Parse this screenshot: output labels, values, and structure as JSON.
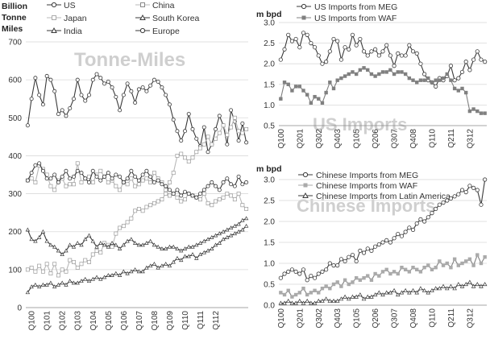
{
  "left_panel": {
    "unit_label": [
      "Billion",
      "Tonne",
      "Miles"
    ],
    "watermark": "Tonne-Miles",
    "legend": [
      "US",
      "China",
      "Japan",
      "South Korea",
      "India",
      "Europe"
    ]
  },
  "us_panel": {
    "unit_label": "m bpd",
    "watermark": "US Imports",
    "legend": [
      "US Imports from MEG",
      "US Imports from WAF"
    ]
  },
  "china_panel": {
    "unit_label": "m bpd",
    "watermark": "Chinese Imports",
    "legend": [
      "Chinese Imports from MEG",
      "Chinese Imports from WAF",
      "Chinese Imports from Latin America"
    ]
  },
  "colors": {
    "dark": "#3a3a3a",
    "light": "#b8b8b8",
    "grid": "#d9d9d9",
    "marker_fill_dark": "#808080"
  },
  "chart_data": [
    {
      "id": "tonne_miles",
      "type": "line",
      "title": "Tonne-Miles",
      "ylabel": "Billion Tonne Miles",
      "ylim": [
        0,
        700
      ],
      "yticks": [
        0,
        100,
        200,
        300,
        400,
        500,
        600,
        700
      ],
      "xlabels": [
        "Q100",
        "Q101",
        "Q102",
        "Q103",
        "Q104",
        "Q105",
        "Q106",
        "Q107",
        "Q108",
        "Q109",
        "Q110",
        "Q111",
        "Q112"
      ],
      "points_per_year": 4,
      "series": [
        {
          "name": "US",
          "marker": "circle",
          "tone": "dark",
          "values": [
            480,
            550,
            605,
            560,
            535,
            610,
            600,
            570,
            510,
            520,
            505,
            525,
            550,
            600,
            560,
            545,
            560,
            600,
            615,
            605,
            590,
            595,
            580,
            555,
            520,
            560,
            590,
            570,
            540,
            575,
            580,
            570,
            585,
            600,
            595,
            580,
            560,
            535,
            495,
            465,
            440,
            465,
            510,
            470,
            445,
            425,
            475,
            410,
            430,
            470,
            505,
            480,
            430,
            520,
            490,
            440,
            485,
            435
          ]
        },
        {
          "name": "China",
          "marker": "square",
          "tone": "light",
          "values": [
            100,
            105,
            95,
            110,
            95,
            115,
            90,
            115,
            85,
            100,
            95,
            125,
            120,
            105,
            115,
            125,
            120,
            140,
            150,
            145,
            170,
            165,
            160,
            195,
            210,
            215,
            225,
            235,
            255,
            260,
            255,
            265,
            270,
            275,
            280,
            285,
            300,
            330,
            355,
            400,
            405,
            395,
            385,
            395,
            410,
            420,
            430,
            450,
            430,
            445,
            460,
            480,
            455,
            475,
            500,
            465,
            460,
            470
          ]
        },
        {
          "name": "Japan",
          "marker": "square",
          "tone": "light",
          "values": [
            335,
            340,
            330,
            375,
            365,
            350,
            320,
            310,
            335,
            340,
            320,
            325,
            325,
            380,
            330,
            340,
            345,
            330,
            350,
            360,
            345,
            330,
            335,
            320,
            310,
            330,
            325,
            340,
            320,
            325,
            335,
            340,
            330,
            355,
            340,
            330,
            310,
            295,
            300,
            290,
            280,
            285,
            300,
            295,
            290,
            285,
            300,
            275,
            270,
            280,
            285,
            290,
            300,
            295,
            285,
            300,
            270,
            260
          ]
        },
        {
          "name": "South Korea",
          "marker": "triangle",
          "tone": "dark",
          "values": [
            40,
            55,
            60,
            55,
            60,
            60,
            65,
            55,
            60,
            65,
            60,
            70,
            65,
            65,
            70,
            75,
            70,
            75,
            80,
            75,
            80,
            85,
            85,
            90,
            85,
            95,
            90,
            95,
            100,
            95,
            95,
            105,
            110,
            115,
            105,
            110,
            115,
            110,
            120,
            130,
            125,
            135,
            135,
            140,
            130,
            140,
            145,
            150,
            155,
            165,
            170,
            180,
            185,
            190,
            195,
            200,
            205,
            215
          ]
        },
        {
          "name": "India",
          "marker": "triangle",
          "tone": "dark",
          "values": [
            205,
            180,
            175,
            185,
            200,
            175,
            165,
            160,
            150,
            140,
            150,
            165,
            160,
            170,
            165,
            180,
            190,
            175,
            160,
            170,
            165,
            160,
            170,
            165,
            155,
            165,
            175,
            180,
            170,
            165,
            165,
            170,
            175,
            165,
            160,
            155,
            155,
            160,
            160,
            155,
            150,
            155,
            160,
            160,
            165,
            170,
            175,
            180,
            185,
            190,
            195,
            200,
            205,
            210,
            215,
            220,
            230,
            235
          ]
        },
        {
          "name": "Europe",
          "marker": "circle",
          "tone": "dark",
          "values": [
            335,
            355,
            375,
            380,
            360,
            340,
            340,
            350,
            330,
            345,
            360,
            340,
            345,
            360,
            355,
            340,
            330,
            360,
            345,
            335,
            345,
            355,
            340,
            350,
            345,
            330,
            340,
            360,
            345,
            335,
            350,
            360,
            345,
            330,
            335,
            325,
            320,
            310,
            300,
            310,
            295,
            305,
            300,
            295,
            290,
            300,
            310,
            320,
            330,
            320,
            310,
            330,
            340,
            325,
            320,
            345,
            325,
            330
          ]
        }
      ]
    },
    {
      "id": "us_imports",
      "type": "line",
      "title": "US Imports",
      "ylabel": "m bpd",
      "ylim": [
        0.5,
        3.0
      ],
      "yticks": [
        0.5,
        1.0,
        1.5,
        2.0,
        2.5,
        3.0
      ],
      "ytick_labels": [
        "0.5",
        "1.0",
        "1.5",
        "2.0",
        "2.5",
        "3.0"
      ],
      "xlabels": [
        "Q100",
        "Q201",
        "Q302",
        "Q403",
        "Q105",
        "Q206",
        "Q307",
        "Q408",
        "Q110",
        "Q211",
        "Q312"
      ],
      "label_step": 5,
      "series": [
        {
          "name": "US Imports from MEG",
          "marker": "circle",
          "tone": "dark",
          "values": [
            2.1,
            2.35,
            2.7,
            2.55,
            2.6,
            2.4,
            2.75,
            2.7,
            2.5,
            2.4,
            2.2,
            2.0,
            2.05,
            2.3,
            2.6,
            2.55,
            2.1,
            2.4,
            2.35,
            2.7,
            2.45,
            2.6,
            2.3,
            2.2,
            2.3,
            2.35,
            2.2,
            2.3,
            2.45,
            2.2,
            1.95,
            2.25,
            2.2,
            2.2,
            2.45,
            2.3,
            2.25,
            2.0,
            1.75,
            1.6,
            1.55,
            1.45,
            1.65,
            1.6,
            1.7,
            1.95,
            1.6,
            1.65,
            1.8,
            2.05,
            1.85,
            2.1,
            2.3,
            2.1,
            2.05
          ]
        },
        {
          "name": "US Imports from WAF",
          "marker": "square",
          "tone": "mid",
          "values": [
            1.15,
            1.55,
            1.5,
            1.35,
            1.45,
            1.45,
            1.35,
            1.25,
            1.05,
            1.2,
            1.15,
            1.05,
            1.3,
            1.55,
            1.4,
            1.6,
            1.65,
            1.7,
            1.75,
            1.8,
            1.75,
            1.85,
            1.9,
            1.85,
            1.75,
            1.7,
            1.75,
            1.8,
            1.8,
            1.85,
            1.75,
            1.8,
            1.8,
            1.75,
            1.65,
            1.6,
            1.55,
            1.6,
            1.6,
            1.65,
            1.55,
            1.6,
            1.6,
            1.65,
            1.75,
            1.6,
            1.4,
            1.35,
            1.4,
            1.3,
            0.85,
            0.9,
            0.85,
            0.8,
            0.8
          ]
        }
      ]
    },
    {
      "id": "chinese_imports",
      "type": "line",
      "title": "Chinese Imports",
      "ylabel": "m bpd",
      "ylim": [
        0.0,
        3.0
      ],
      "yticks": [
        0.0,
        0.5,
        1.0,
        1.5,
        2.0,
        2.5,
        3.0
      ],
      "ytick_labels": [
        "0.0",
        "0.5",
        "1.0",
        "1.5",
        "2.0",
        "2.5",
        "3.0"
      ],
      "xlabels": [
        "Q100",
        "Q201",
        "Q302",
        "Q403",
        "Q105",
        "Q206",
        "Q307",
        "Q408",
        "Q110",
        "Q211",
        "Q312"
      ],
      "label_step": 5,
      "series": [
        {
          "name": "Chinese Imports from MEG",
          "marker": "circle",
          "tone": "dark",
          "values": [
            0.65,
            0.75,
            0.8,
            0.85,
            0.8,
            0.75,
            0.85,
            0.6,
            0.7,
            0.65,
            0.75,
            0.8,
            0.85,
            1.0,
            0.95,
            0.95,
            1.1,
            1.05,
            1.15,
            1.2,
            1.05,
            1.3,
            1.25,
            1.35,
            1.3,
            1.4,
            1.45,
            1.5,
            1.55,
            1.5,
            1.6,
            1.7,
            1.65,
            1.75,
            1.85,
            1.8,
            1.95,
            2.05,
            2.0,
            2.1,
            2.2,
            2.3,
            2.4,
            2.45,
            2.5,
            2.55,
            2.6,
            2.65,
            2.75,
            2.7,
            2.85,
            2.8,
            2.75,
            2.4,
            3.0
          ]
        },
        {
          "name": "Chinese Imports from WAF",
          "marker": "square",
          "tone": "mid",
          "values": [
            0.3,
            0.25,
            0.35,
            0.2,
            0.25,
            0.3,
            0.4,
            0.25,
            0.3,
            0.35,
            0.3,
            0.4,
            0.45,
            0.4,
            0.5,
            0.55,
            0.45,
            0.6,
            0.5,
            0.55,
            0.65,
            0.6,
            0.65,
            0.7,
            0.6,
            0.75,
            0.7,
            0.8,
            0.85,
            0.75,
            0.8,
            0.75,
            0.9,
            0.85,
            0.8,
            0.9,
            0.85,
            0.8,
            0.9,
            0.95,
            0.85,
            0.9,
            1.05,
            0.95,
            1.0,
            0.9,
            1.1,
            0.95,
            1.0,
            1.05,
            1.1,
            0.95,
            1.2,
            1.0,
            1.15
          ]
        },
        {
          "name": "Chinese Imports from Latin America",
          "marker": "triangle",
          "tone": "dark",
          "values": [
            0.05,
            0.05,
            0.1,
            0.05,
            0.05,
            0.1,
            0.05,
            0.1,
            0.05,
            0.05,
            0.1,
            0.1,
            0.15,
            0.1,
            0.1,
            0.1,
            0.15,
            0.2,
            0.15,
            0.2,
            0.2,
            0.25,
            0.15,
            0.2,
            0.2,
            0.25,
            0.3,
            0.25,
            0.3,
            0.3,
            0.35,
            0.25,
            0.3,
            0.35,
            0.3,
            0.35,
            0.3,
            0.4,
            0.35,
            0.3,
            0.35,
            0.4,
            0.4,
            0.45,
            0.4,
            0.45,
            0.4,
            0.5,
            0.45,
            0.5,
            0.55,
            0.45,
            0.5,
            0.45,
            0.5
          ]
        }
      ]
    }
  ]
}
